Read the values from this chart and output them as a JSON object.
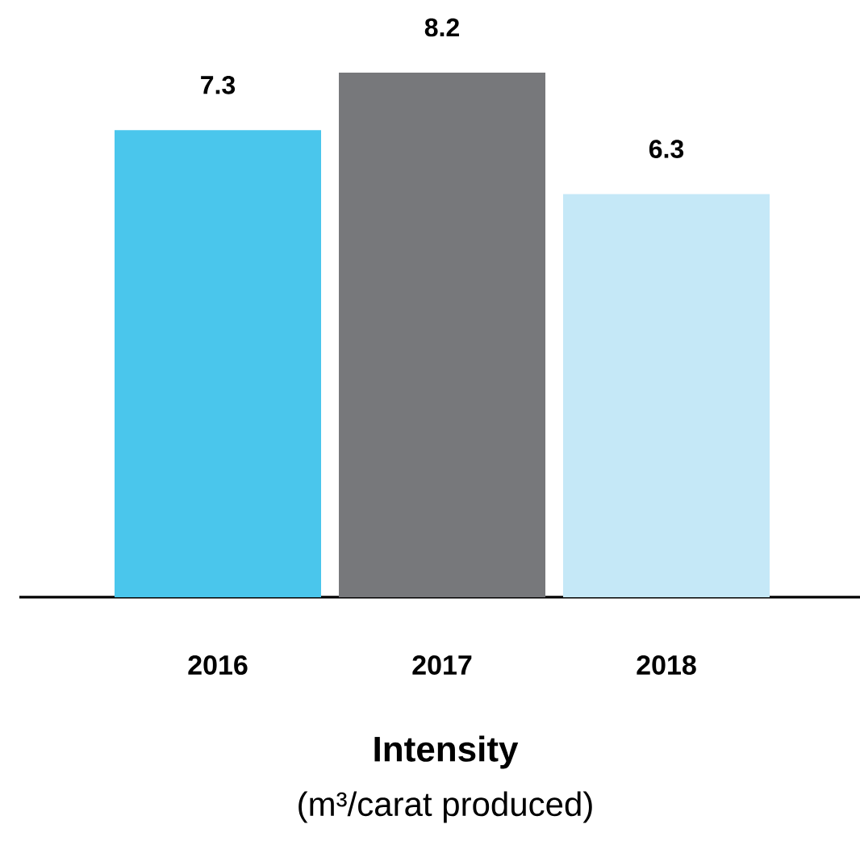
{
  "chart_data": {
    "type": "bar",
    "title": "Intensity",
    "subtitle": "(m³/carat produced)",
    "categories": [
      "2016",
      "2017",
      "2018"
    ],
    "values": [
      7.3,
      8.2,
      6.3
    ],
    "colors": [
      "#4ac6ec",
      "#77787b",
      "#c5e8f7"
    ],
    "data_labels": true
  }
}
